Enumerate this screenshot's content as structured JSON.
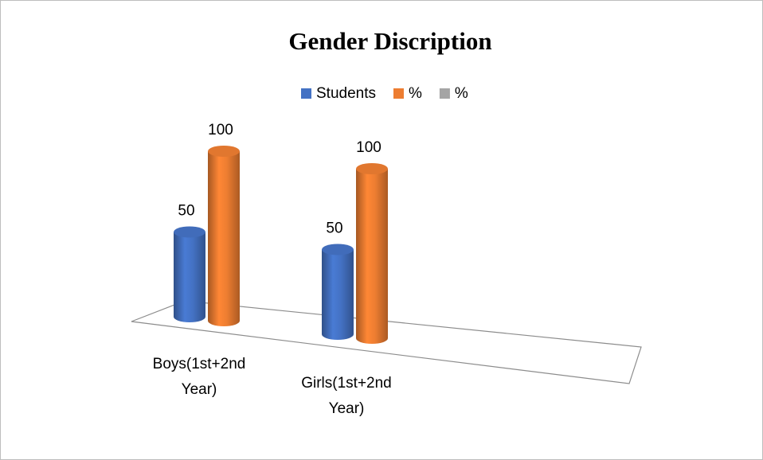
{
  "chart_data": {
    "type": "bar3d",
    "title": "Gender Discription",
    "categories": [
      "Boys(1st+2nd Year)",
      "Girls(1st+2nd Year)"
    ],
    "series": [
      {
        "name": "Students",
        "color": "#4472c4",
        "values": [
          50,
          50
        ]
      },
      {
        "name": "%",
        "color": "#ed7d31",
        "values": [
          100,
          100
        ]
      },
      {
        "name": "%",
        "color": "#a5a5a5",
        "values": [
          null,
          null
        ]
      }
    ],
    "legend": "top"
  }
}
